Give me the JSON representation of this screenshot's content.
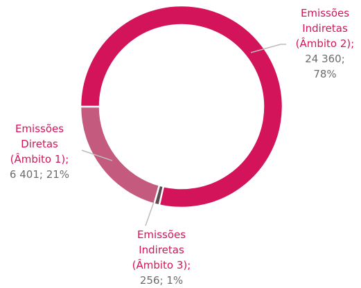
{
  "chart_data": {
    "type": "donut",
    "categories": [
      "Emissões Indiretas (Âmbito 2)",
      "Emissões Indiretas (Âmbito 3)",
      "Emissões Diretas (Âmbito 1)"
    ],
    "values": [
      24360,
      256,
      6401
    ],
    "value_labels": [
      "24 360",
      "256",
      "6 401"
    ],
    "percents": [
      78,
      1,
      21
    ],
    "percent_labels": [
      "78%",
      "1%",
      "21%"
    ],
    "separator": ";",
    "colors": [
      "#d4145a",
      "#5b4a50",
      "#c45a7e"
    ]
  }
}
